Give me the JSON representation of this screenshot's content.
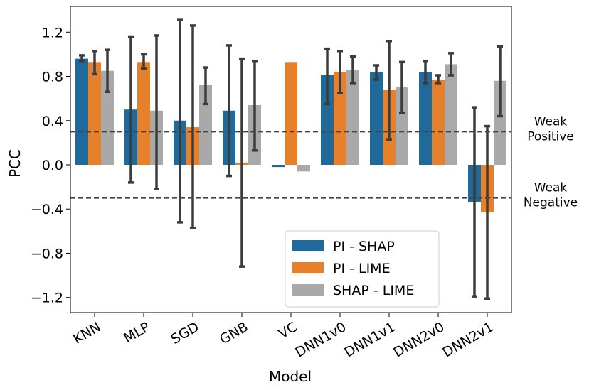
{
  "chart_data": {
    "type": "bar",
    "xlabel": "Model",
    "ylabel": "PCC",
    "ylim": [
      -1.33,
      1.43
    ],
    "yticks": [
      "1.2",
      "0.8",
      "0.4",
      "0.0",
      "−0.4",
      "−0.8",
      "−1.2"
    ],
    "ytick_values": [
      1.2,
      0.8,
      0.4,
      0.0,
      -0.4,
      -0.8,
      -1.2
    ],
    "categories": [
      "KNN",
      "MLP",
      "SGD",
      "GNB",
      "VC",
      "DNN1v0",
      "DNN1v1",
      "DNN2v0",
      "DNN2v1"
    ],
    "series": [
      {
        "name": "PI - SHAP",
        "color": "#1f6a9a",
        "values": [
          0.96,
          0.5,
          0.4,
          0.49,
          -0.02,
          0.81,
          0.84,
          0.84,
          -0.34
        ],
        "err_low": [
          0.94,
          -0.16,
          -0.52,
          -0.1,
          null,
          0.55,
          0.77,
          0.74,
          -1.19
        ],
        "err_high": [
          0.99,
          1.16,
          1.31,
          1.08,
          null,
          1.05,
          0.9,
          0.94,
          0.52
        ]
      },
      {
        "name": "PI - LIME",
        "color": "#e7802b",
        "values": [
          0.93,
          0.93,
          0.34,
          0.02,
          0.93,
          0.84,
          0.68,
          0.77,
          -0.43
        ],
        "err_low": [
          0.82,
          0.87,
          -0.57,
          -0.92,
          null,
          0.65,
          0.23,
          0.74,
          -1.21
        ],
        "err_high": [
          1.03,
          1.0,
          1.26,
          0.96,
          null,
          1.03,
          1.12,
          0.81,
          0.35
        ]
      },
      {
        "name": "SHAP - LIME",
        "color": "#a9a9a9",
        "values": [
          0.85,
          0.49,
          0.72,
          0.54,
          -0.06,
          0.86,
          0.7,
          0.91,
          0.76
        ],
        "err_low": [
          0.66,
          -0.22,
          0.55,
          0.13,
          null,
          0.74,
          0.47,
          0.81,
          0.44
        ],
        "err_high": [
          1.04,
          1.17,
          0.88,
          0.94,
          null,
          0.98,
          0.93,
          1.01,
          1.07
        ]
      }
    ],
    "reference_lines": [
      {
        "value": 0.3,
        "label_line1": "Weak",
        "label_line2": "Positive"
      },
      {
        "value": -0.3,
        "label_line1": "Weak",
        "label_line2": "Negative"
      }
    ],
    "legend_position": "lower-right",
    "grid": false
  }
}
